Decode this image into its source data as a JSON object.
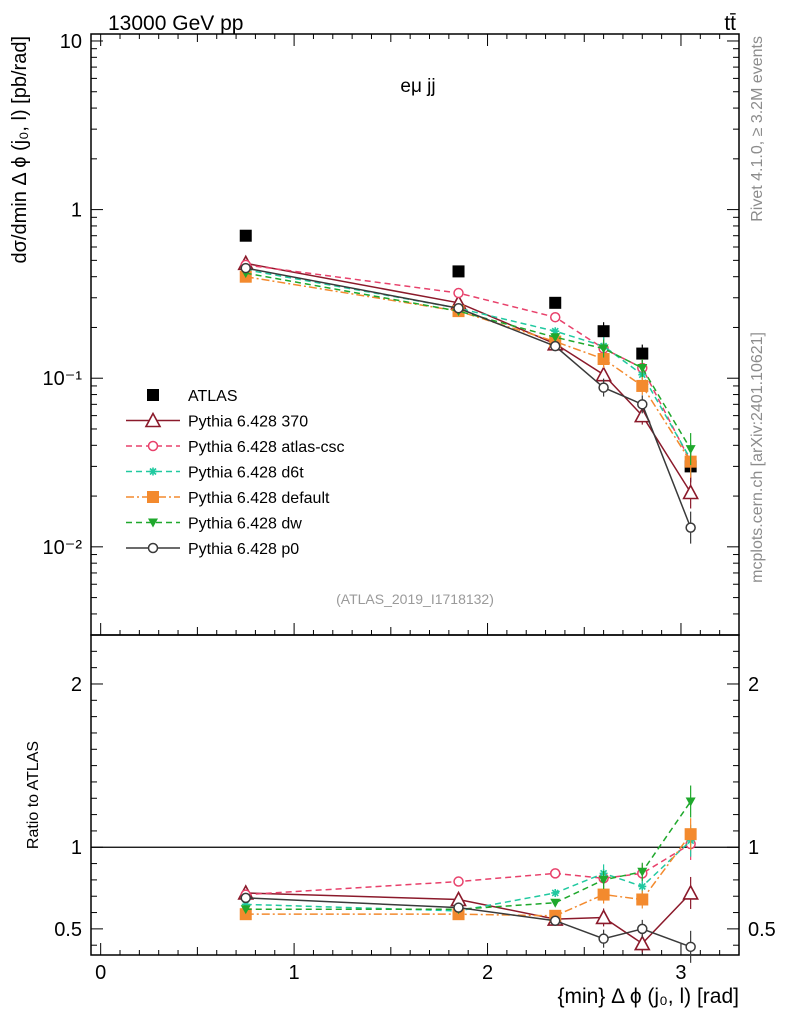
{
  "header": {
    "energy_label": "13000 GeV pp",
    "process_label": "tt̄",
    "channel_label": "eμ jj",
    "rivet_label": "Rivet 4.1.0, ≥ 3.2M events",
    "mcplots_label": "mcplots.cern.ch [arXiv:2401.10621]",
    "analysis_label": "(ATLAS_2019_I1718132)"
  },
  "chart_data": [
    {
      "type": "scatter",
      "panel": "main",
      "title": "eμ jj",
      "ylabel": "dσ/dmin Δ ϕ (j₀, l) [pb/rad]",
      "yscale": "log",
      "ylim": [
        0.003,
        11
      ],
      "xlim": [
        -0.05,
        3.3
      ],
      "x": [
        0.75,
        1.85,
        2.35,
        2.6,
        2.8,
        3.05
      ],
      "y_ticks": [
        {
          "value": 10,
          "label": "10"
        },
        {
          "value": 1,
          "label": "1"
        },
        {
          "value": 0.1,
          "label": "10⁻¹"
        },
        {
          "value": 0.01,
          "label": "10⁻²"
        }
      ],
      "legend": {
        "placement": "lower-left"
      },
      "series": [
        {
          "name": "ATLAS",
          "color": "#000000",
          "marker": "square-filled",
          "line": "none",
          "values": [
            0.7,
            0.43,
            0.28,
            0.19,
            0.14,
            0.03
          ]
        },
        {
          "name": "Pythia 6.428 370",
          "color": "#8b1a2b",
          "marker": "triangle-open",
          "line": "solid",
          "values": [
            0.48,
            0.28,
            0.16,
            0.105,
            0.06,
            0.021
          ]
        },
        {
          "name": "Pythia 6.428 atlas-csc",
          "color": "#e8416b",
          "marker": "circle-open",
          "line": "dashed",
          "values": [
            0.47,
            0.32,
            0.23,
            0.15,
            0.115,
            0.032
          ]
        },
        {
          "name": "Pythia 6.428 d6t",
          "color": "#20c9a0",
          "marker": "star",
          "line": "dashed",
          "values": [
            0.44,
            0.26,
            0.19,
            0.155,
            0.105,
            0.033
          ]
        },
        {
          "name": "Pythia 6.428 default",
          "color": "#f38a2e",
          "marker": "square-filled",
          "line": "dashdot",
          "values": [
            0.4,
            0.25,
            0.165,
            0.13,
            0.09,
            0.032
          ]
        },
        {
          "name": "Pythia 6.428 dw",
          "color": "#1fa82c",
          "marker": "triangle-down-filled",
          "line": "dashed",
          "values": [
            0.42,
            0.25,
            0.175,
            0.15,
            0.115,
            0.038
          ]
        },
        {
          "name": "Pythia 6.428 p0",
          "color": "#3a3a3a",
          "marker": "circle-open",
          "line": "solid",
          "values": [
            0.45,
            0.26,
            0.155,
            0.088,
            0.07,
            0.013
          ]
        }
      ]
    },
    {
      "type": "scatter",
      "panel": "ratio",
      "ylabel": "Ratio to ATLAS",
      "xlabel": "{min} Δ ϕ (j₀, l) [rad]",
      "ylim": [
        0.34,
        2.3
      ],
      "xlim": [
        -0.05,
        3.3
      ],
      "x": [
        0.75,
        1.85,
        2.35,
        2.6,
        2.8,
        3.05
      ],
      "x_ticks": [
        {
          "value": 0,
          "label": "0"
        },
        {
          "value": 1,
          "label": "1"
        },
        {
          "value": 2,
          "label": "2"
        },
        {
          "value": 3,
          "label": "3"
        }
      ],
      "y_ticks": [
        {
          "value": 2,
          "label": "2"
        },
        {
          "value": 1,
          "label": "1"
        },
        {
          "value": 0.5,
          "label": "0.5"
        }
      ],
      "reference_line": 1,
      "series": [
        {
          "name": "Pythia 6.428 370",
          "color": "#8b1a2b",
          "marker": "triangle-open",
          "line": "solid",
          "values": [
            0.72,
            0.68,
            0.56,
            0.57,
            0.41,
            0.72
          ]
        },
        {
          "name": "Pythia 6.428 atlas-csc",
          "color": "#e8416b",
          "marker": "circle-open",
          "line": "dashed",
          "values": [
            0.71,
            0.79,
            0.84,
            0.81,
            0.84,
            1.02
          ]
        },
        {
          "name": "Pythia 6.428 d6t",
          "color": "#20c9a0",
          "marker": "star",
          "line": "dashed",
          "values": [
            0.65,
            0.61,
            0.72,
            0.84,
            0.76,
            1.04
          ]
        },
        {
          "name": "Pythia 6.428 default",
          "color": "#f38a2e",
          "marker": "square-filled",
          "line": "dashdot",
          "values": [
            0.59,
            0.59,
            0.58,
            0.71,
            0.68,
            1.08
          ]
        },
        {
          "name": "Pythia 6.428 dw",
          "color": "#1fa82c",
          "marker": "triangle-down-filled",
          "line": "dashed",
          "values": [
            0.62,
            0.62,
            0.66,
            0.8,
            0.85,
            1.28
          ]
        },
        {
          "name": "Pythia 6.428 p0",
          "color": "#3a3a3a",
          "marker": "circle-open",
          "line": "solid",
          "values": [
            0.69,
            0.63,
            0.55,
            0.44,
            0.5,
            0.39
          ]
        }
      ]
    }
  ]
}
